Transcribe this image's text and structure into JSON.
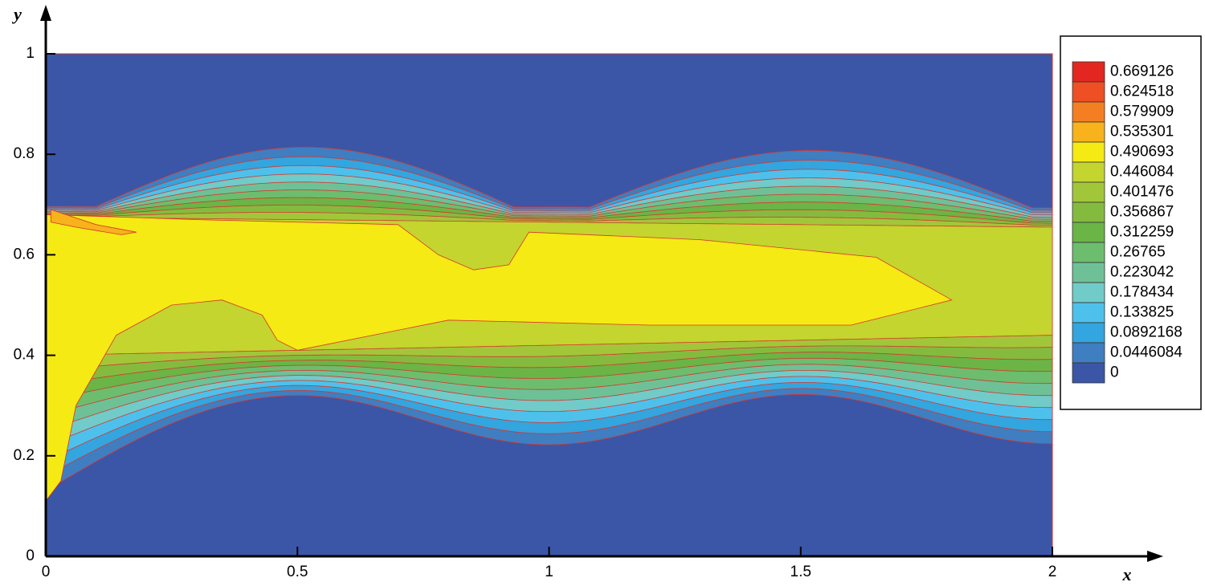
{
  "chart_data": {
    "type": "contour",
    "x_label": "x",
    "y_label": "y",
    "xlim": [
      0,
      2
    ],
    "ylim": [
      0,
      1
    ],
    "xticks": [
      0,
      0.5,
      1,
      1.5,
      2
    ],
    "yticks": [
      0,
      0.2,
      0.4,
      0.6,
      0.8,
      1
    ],
    "levels": [
      0.669126,
      0.624518,
      0.579909,
      0.535301,
      0.490693,
      0.446084,
      0.401476,
      0.356867,
      0.312259,
      0.26765,
      0.223042,
      0.178434,
      0.133825,
      0.0892168,
      0.0446084,
      0
    ],
    "colors": [
      "#e3261f",
      "#ee4f24",
      "#f47f22",
      "#f8b21c",
      "#f5ea14",
      "#c3d52e",
      "#a2c63a",
      "#84bb3f",
      "#6bb446",
      "#6dbd6e",
      "#6ec196",
      "#70cbc9",
      "#4dc1ec",
      "#33a5df",
      "#3f7ec1",
      "#3b56a6"
    ],
    "legend": "right"
  }
}
